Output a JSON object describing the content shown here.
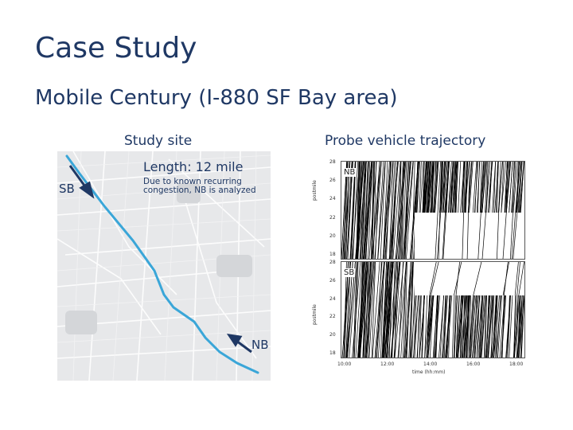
{
  "slide": {
    "title": "Case Study",
    "subtitle": "Mobile Century (I-880 SF Bay area)"
  },
  "study_site": {
    "caption": "Study site",
    "length_text": "Length: 12 mile",
    "note_line1": "Due to known recurring",
    "note_line2": "congestion, NB is analyzed",
    "sb_label": "SB",
    "nb_label": "NB",
    "route_color": "#3aa6d8",
    "arrow_color": "#1f3864"
  },
  "trajectory": {
    "caption": "Probe vehicle trajectory",
    "panel_nb": "NB",
    "panel_sb": "SB",
    "y_axis": "postmile",
    "x_axis": "time (hh:mm)",
    "x_ticks": [
      "10:00",
      "12:00",
      "14:00",
      "16:00",
      "18:00"
    ],
    "y_ticks_nb": [
      "28",
      "26",
      "24",
      "22",
      "20",
      "18"
    ],
    "y_ticks_sb": [
      "28",
      "26",
      "24",
      "22",
      "20",
      "18"
    ]
  }
}
